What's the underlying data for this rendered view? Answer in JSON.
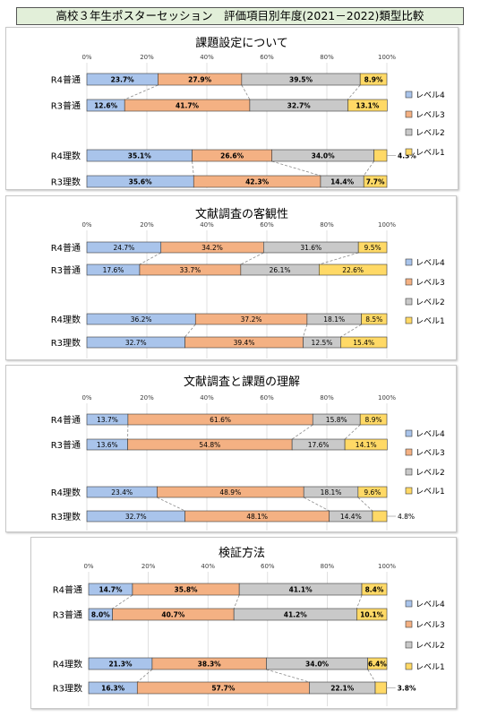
{
  "page_title": "高校３年生ポスターセッション　評価項目別年度(2021－2022)類型比較",
  "legend_labels": [
    "レベル4",
    "レベル3",
    "レベル2",
    "レベル1"
  ],
  "colors": {
    "level4": "#a9c4eb",
    "level3": "#f4b183",
    "level2": "#c9c9c9",
    "level1": "#ffd966",
    "title_band": "#e2efd9"
  },
  "chart_data": [
    {
      "type": "bar",
      "stacked": "100%",
      "orientation": "horizontal",
      "title": "課題設定について",
      "xticks": [
        "0%",
        "20%",
        "40%",
        "60%",
        "80%",
        "100%"
      ],
      "xlim": [
        0,
        100
      ],
      "categories": [
        "R4普通",
        "R3普通",
        "R4理数",
        "R3理数"
      ],
      "series": [
        {
          "name": "レベル4",
          "values": [
            23.7,
            12.6,
            35.1,
            35.6
          ]
        },
        {
          "name": "レベル3",
          "values": [
            27.9,
            41.7,
            26.6,
            42.3
          ]
        },
        {
          "name": "レベル2",
          "values": [
            39.5,
            32.7,
            34.0,
            14.4
          ]
        },
        {
          "name": "レベル1",
          "values": [
            8.9,
            13.1,
            4.3,
            7.7
          ]
        }
      ],
      "labels": [
        [
          "23.7%",
          "27.9%",
          "39.5%",
          "8.9%"
        ],
        [
          "12.6%",
          "41.7%",
          "32.7%",
          "13.1%"
        ],
        [
          "35.1%",
          "26.6%",
          "34.0%",
          "4.3%"
        ],
        [
          "35.6%",
          "42.3%",
          "14.4%",
          "7.7%"
        ]
      ],
      "legend_position": "right"
    },
    {
      "type": "bar",
      "stacked": "100%",
      "orientation": "horizontal",
      "title": "文献調査の客観性",
      "xticks": [
        "0%",
        "20%",
        "40%",
        "60%",
        "80%",
        "100%"
      ],
      "xlim": [
        0,
        100
      ],
      "categories": [
        "R4普通",
        "R3普通",
        "R4理数",
        "R3理数"
      ],
      "series": [
        {
          "name": "レベル4",
          "values": [
            24.7,
            17.6,
            36.2,
            32.7
          ]
        },
        {
          "name": "レベル3",
          "values": [
            34.2,
            33.7,
            37.2,
            39.4
          ]
        },
        {
          "name": "レベル2",
          "values": [
            31.6,
            26.1,
            18.1,
            12.5
          ]
        },
        {
          "name": "レベル1",
          "values": [
            9.5,
            22.6,
            8.5,
            15.4
          ]
        }
      ],
      "labels": [
        [
          "24.7%",
          "34.2%",
          "31.6%",
          "9.5%"
        ],
        [
          "17.6%",
          "33.7%",
          "26.1%",
          "22.6%"
        ],
        [
          "36.2%",
          "37.2%",
          "18.1%",
          "8.5%"
        ],
        [
          "32.7%",
          "39.4%",
          "12.5%",
          "15.4%"
        ]
      ],
      "legend_position": "right"
    },
    {
      "type": "bar",
      "stacked": "100%",
      "orientation": "horizontal",
      "title": "文献調査と課題の理解",
      "xticks": [
        "0%",
        "20%",
        "40%",
        "60%",
        "80%",
        "100%"
      ],
      "xlim": [
        0,
        100
      ],
      "categories": [
        "R4普通",
        "R3普通",
        "R4理数",
        "R3理数"
      ],
      "series": [
        {
          "name": "レベル4",
          "values": [
            13.7,
            13.6,
            23.4,
            32.7
          ]
        },
        {
          "name": "レベル3",
          "values": [
            61.6,
            54.8,
            48.9,
            48.1
          ]
        },
        {
          "name": "レベル2",
          "values": [
            15.8,
            17.6,
            18.1,
            14.4
          ]
        },
        {
          "name": "レベル1",
          "values": [
            8.9,
            14.1,
            9.6,
            4.8
          ]
        }
      ],
      "labels": [
        [
          "13.7%",
          "61.6%",
          "15.8%",
          "8.9%"
        ],
        [
          "13.6%",
          "54.8%",
          "17.6%",
          "14.1%"
        ],
        [
          "23.4%",
          "48.9%",
          "18.1%",
          "9.6%"
        ],
        [
          "32.7%",
          "48.1%",
          "14.4%",
          "4.8%"
        ]
      ],
      "legend_position": "right"
    },
    {
      "type": "bar",
      "stacked": "100%",
      "orientation": "horizontal",
      "title": "検証方法",
      "xticks": [
        "0%",
        "20%",
        "40%",
        "60%",
        "80%",
        "100%"
      ],
      "xlim": [
        0,
        100
      ],
      "categories": [
        "R4普通",
        "R3普通",
        "R4理数",
        "R3理数"
      ],
      "series": [
        {
          "name": "レベル4",
          "values": [
            14.7,
            8.0,
            21.3,
            16.3
          ]
        },
        {
          "name": "レベル3",
          "values": [
            35.8,
            40.7,
            38.3,
            57.7
          ]
        },
        {
          "name": "レベル2",
          "values": [
            41.1,
            41.2,
            34.0,
            22.1
          ]
        },
        {
          "name": "レベル1",
          "values": [
            8.4,
            10.1,
            6.4,
            3.8
          ]
        }
      ],
      "labels": [
        [
          "14.7%",
          "35.8%",
          "41.1%",
          "8.4%"
        ],
        [
          "8.0%",
          "40.7%",
          "41.2%",
          "10.1%"
        ],
        [
          "21.3%",
          "38.3%",
          "34.0%",
          "6.4%"
        ],
        [
          "16.3%",
          "57.7%",
          "22.1%",
          "3.8%"
        ]
      ],
      "legend_position": "right"
    }
  ]
}
